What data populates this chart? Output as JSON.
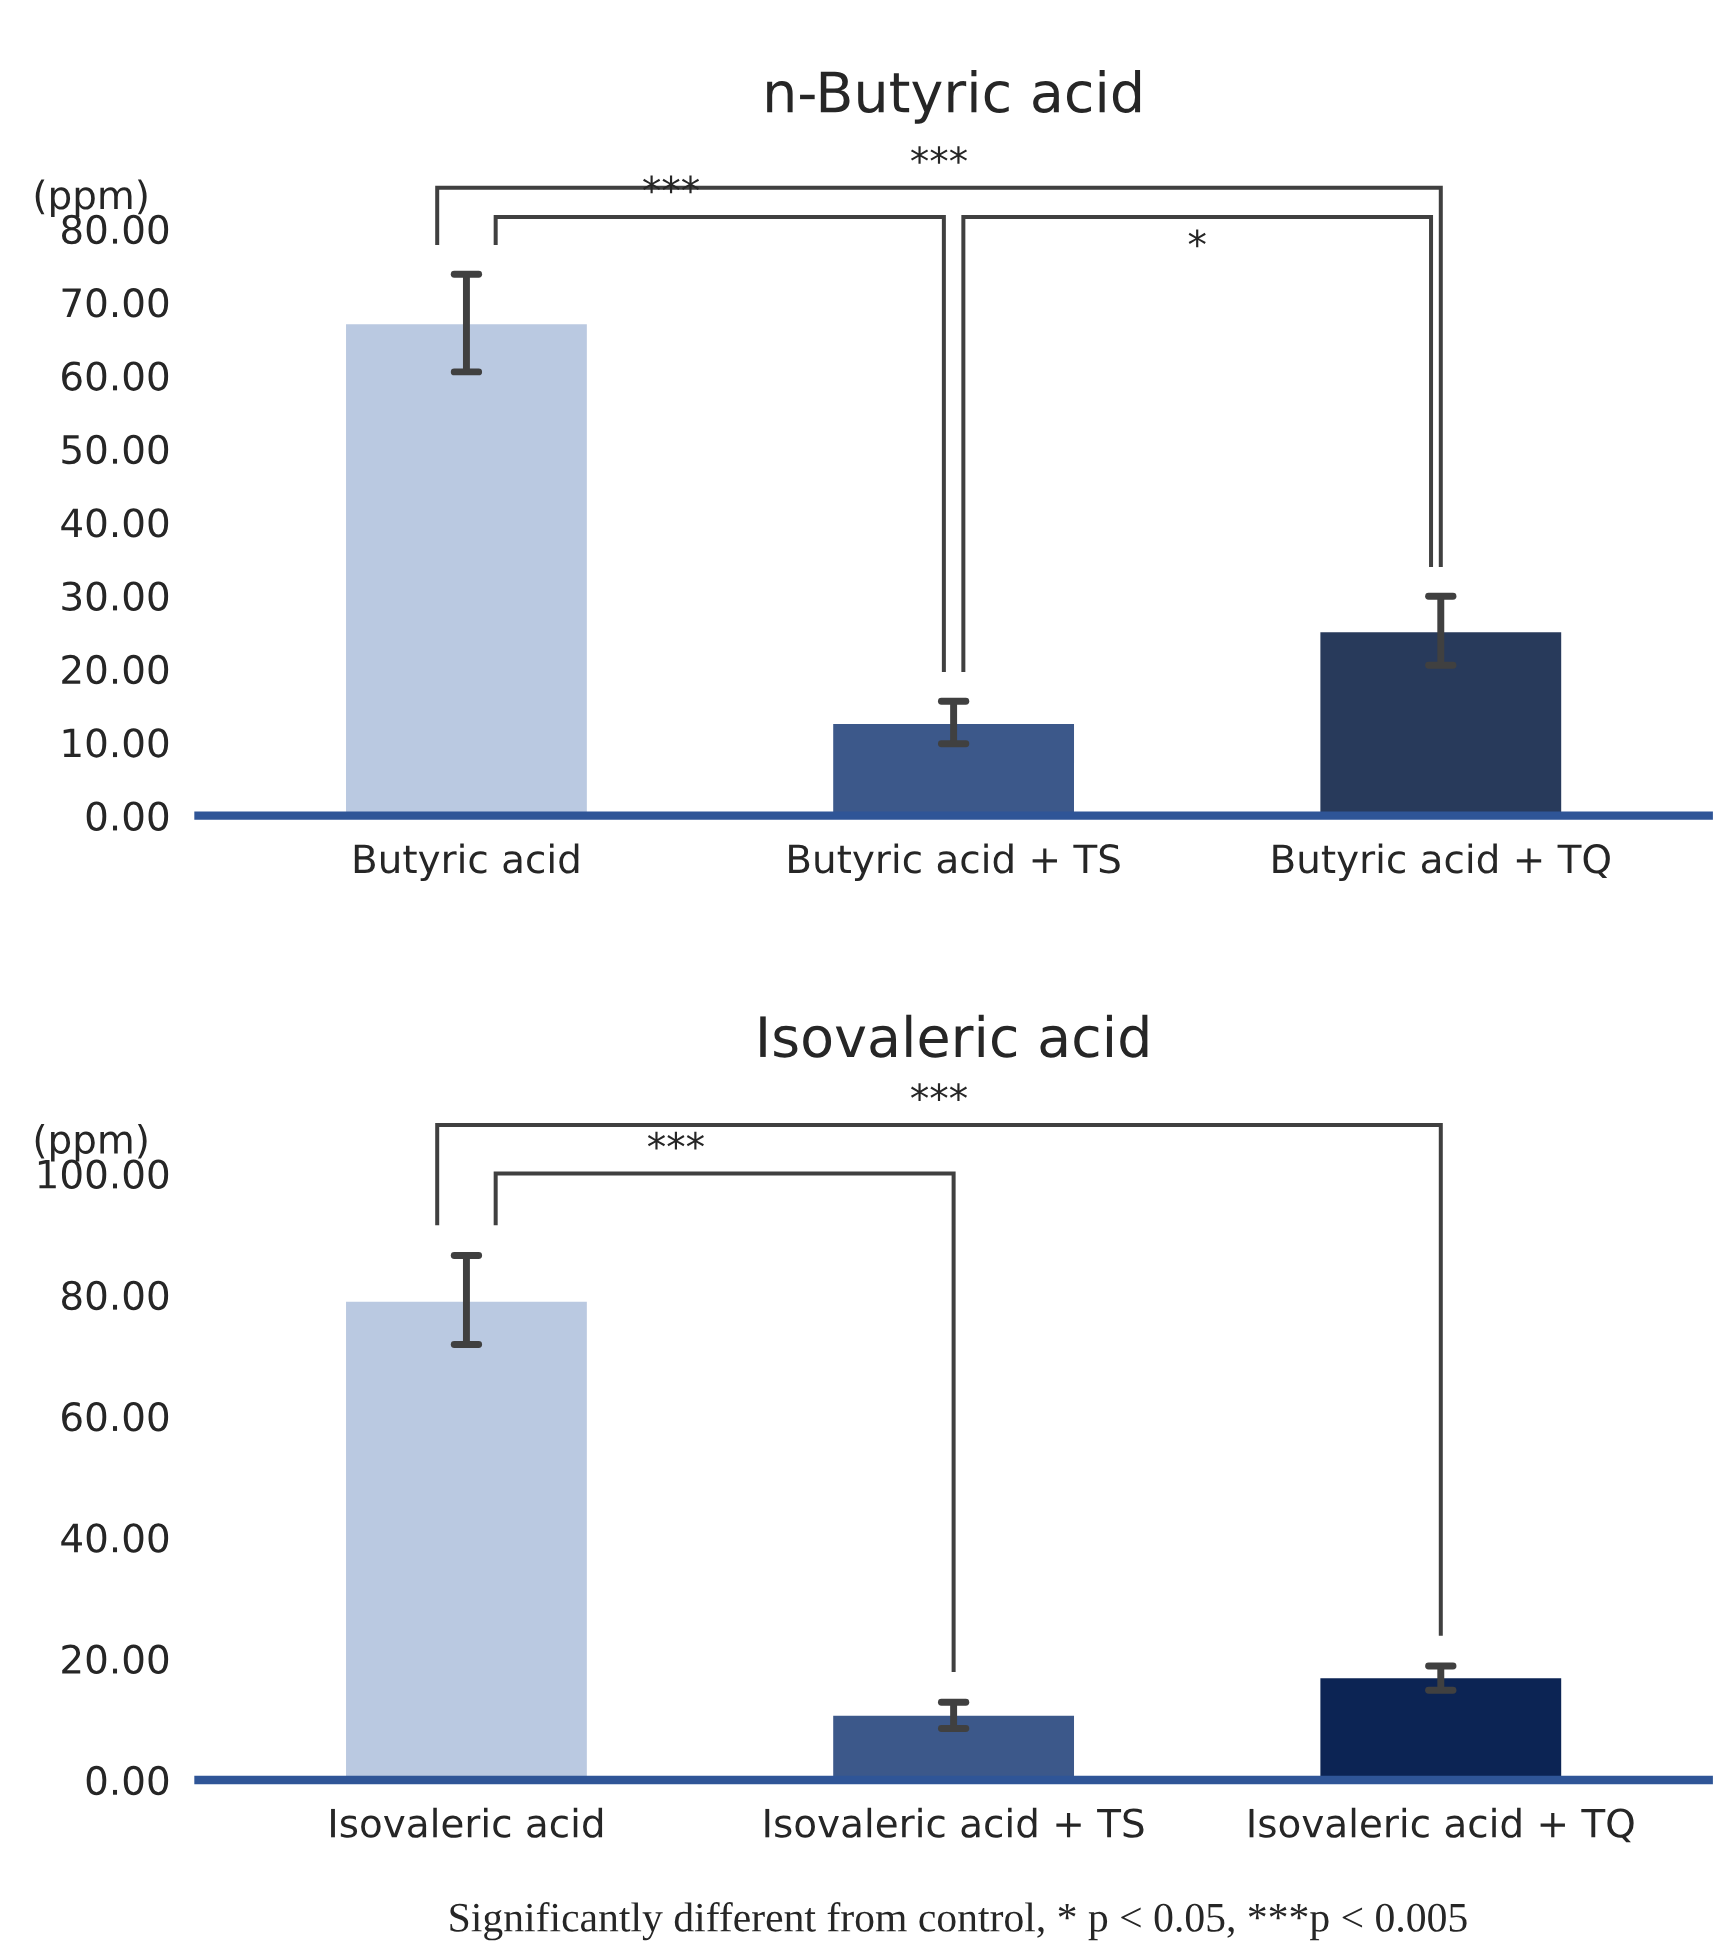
{
  "chart_data": [
    {
      "type": "bar",
      "title": "n-Butyric acid",
      "ylabel": "(ppm)",
      "categories": [
        "Butyric acid",
        "Butyric acid + TS",
        "Butyric acid + TQ"
      ],
      "values": [
        67.2,
        12.7,
        25.2
      ],
      "colors": [
        "#b4c7e7",
        "#2f5597",
        "#1f3864"
      ],
      "errors": [
        [
          60.5,
          73.8
        ],
        [
          9.8,
          15.6
        ],
        [
          20.5,
          29.9
        ]
      ],
      "ylim": [
        0,
        80
      ],
      "yticks": [
        {
          "value": 0,
          "label": "0.00"
        },
        {
          "value": 10,
          "label": "10.00"
        },
        {
          "value": 20,
          "label": "20.00"
        },
        {
          "value": 30,
          "label": "30.00"
        },
        {
          "value": 40,
          "label": "40.00"
        },
        {
          "value": 50,
          "label": "50.00"
        },
        {
          "value": 60,
          "label": "60.00"
        },
        {
          "value": 70,
          "label": "70.00"
        },
        {
          "value": 80,
          "label": "80.00"
        }
      ],
      "annotations": [
        "***",
        "***",
        "*"
      ],
      "grid": false
    },
    {
      "type": "bar",
      "title": "Isovaleric acid",
      "ylabel": "(ppm)",
      "categories": [
        "Isovaleric acid",
        "Isovaleric acid + TS",
        "Isovaleric acid + TQ"
      ],
      "values": [
        79.1,
        10.8,
        17.0
      ],
      "colors": [
        "#b4c7e7",
        "#2f5597",
        "#002060"
      ],
      "errors": [
        [
          71.8,
          86.5
        ],
        [
          8.5,
          12.8
        ],
        [
          14.8,
          18.8
        ]
      ],
      "ylim": [
        0,
        100
      ],
      "yticks": [
        {
          "value": 0,
          "label": "0.00"
        },
        {
          "value": 20,
          "label": "20.00"
        },
        {
          "value": 40,
          "label": "40.00"
        },
        {
          "value": 60,
          "label": "60.00"
        },
        {
          "value": 80,
          "label": "80.00"
        },
        {
          "value": 100,
          "label": "100.00"
        }
      ],
      "annotations": [
        "***",
        "***",
        "Significantly different from control, * p < 0.05, ***p < 0.005"
      ],
      "grid": false
    }
  ]
}
